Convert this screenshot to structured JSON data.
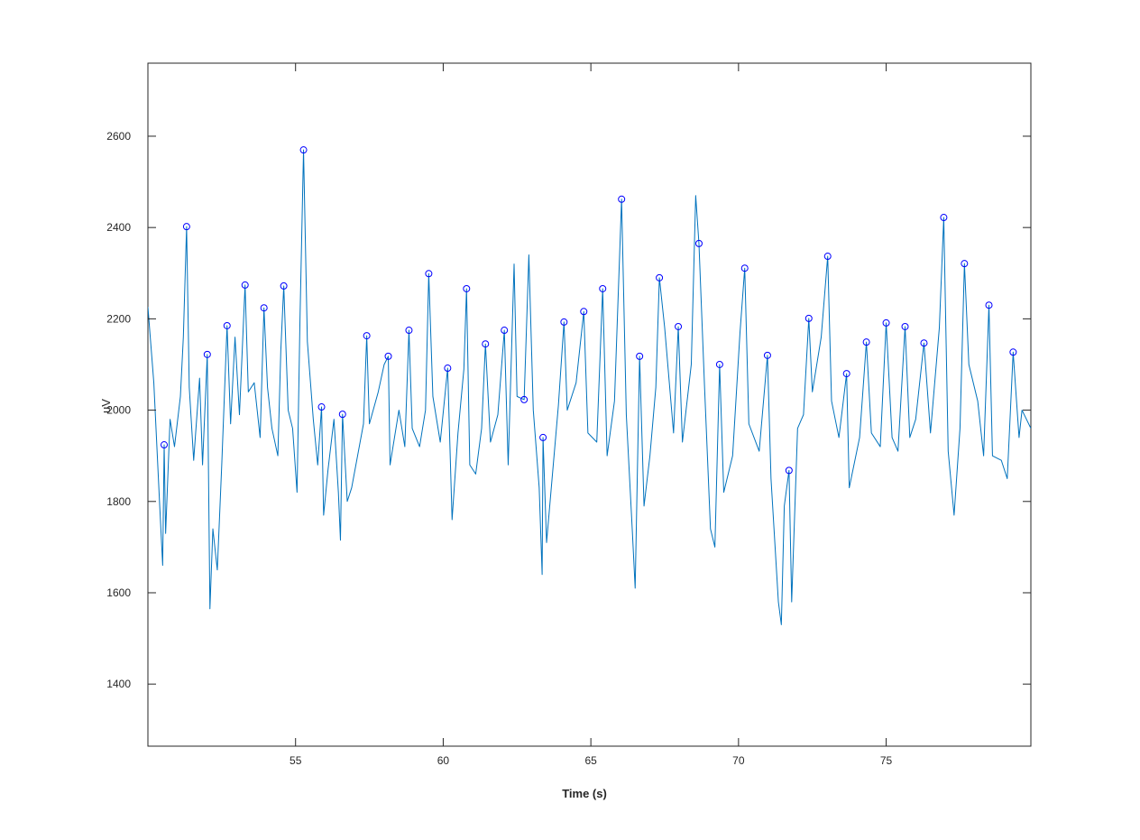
{
  "chart_data": {
    "type": "line",
    "xlabel": "Time (s)",
    "ylabel": "uV",
    "xlim": [
      50,
      79.9
    ],
    "ylim": [
      1264,
      2760
    ],
    "xticks": [
      55,
      60,
      65,
      70,
      75
    ],
    "yticks": [
      1400,
      1600,
      1800,
      2000,
      2200,
      2400,
      2600
    ],
    "grid": false,
    "series": [
      {
        "color": "#0072bd",
        "marker": "none",
        "x": [
          50.0,
          50.2,
          50.4,
          50.5,
          50.55,
          50.6,
          50.75,
          50.9,
          51.1,
          51.2,
          51.31,
          51.4,
          51.55,
          51.75,
          51.85,
          52.01,
          52.1,
          52.2,
          52.35,
          52.5,
          52.68,
          52.8,
          52.95,
          53.1,
          53.29,
          53.4,
          53.6,
          53.8,
          53.93,
          54.05,
          54.2,
          54.4,
          54.5,
          54.6,
          54.75,
          54.9,
          55.05,
          55.15,
          55.27,
          55.4,
          55.6,
          55.75,
          55.88,
          55.95,
          56.1,
          56.3,
          56.45,
          56.52,
          56.59,
          56.75,
          56.9,
          57.1,
          57.3,
          57.41,
          57.5,
          57.8,
          58.0,
          58.14,
          58.2,
          58.5,
          58.7,
          58.84,
          58.95,
          59.2,
          59.4,
          59.51,
          59.65,
          59.9,
          60.15,
          60.3,
          60.5,
          60.7,
          60.79,
          60.9,
          61.1,
          61.3,
          61.43,
          61.6,
          61.85,
          62.07,
          62.2,
          62.4,
          62.5,
          62.74,
          62.9,
          63.05,
          63.25,
          63.35,
          63.38,
          63.5,
          63.7,
          63.9,
          64.09,
          64.2,
          64.5,
          64.76,
          64.9,
          65.2,
          65.4,
          65.55,
          65.8,
          66.04,
          66.2,
          66.4,
          66.5,
          66.65,
          66.8,
          67.0,
          67.2,
          67.32,
          67.5,
          67.8,
          67.96,
          68.1,
          68.4,
          68.55,
          68.66,
          68.85,
          69.05,
          69.2,
          69.36,
          69.5,
          69.8,
          70.05,
          70.21,
          70.35,
          70.7,
          70.98,
          71.1,
          71.35,
          71.45,
          71.55,
          71.71,
          71.8,
          72.0,
          72.2,
          72.38,
          72.5,
          72.8,
          73.02,
          73.15,
          73.4,
          73.66,
          73.75,
          74.1,
          74.33,
          74.5,
          74.8,
          75.0,
          75.2,
          75.4,
          75.64,
          75.8,
          76.0,
          76.28,
          76.5,
          76.8,
          76.95,
          77.1,
          77.3,
          77.5,
          77.65,
          77.8,
          78.1,
          78.3,
          78.48,
          78.6,
          78.9,
          79.1,
          79.3,
          79.5,
          79.6,
          79.9
        ],
        "values": [
          2226,
          2060,
          1790,
          1660,
          1924,
          1730,
          1980,
          1920,
          2030,
          2160,
          2402,
          2050,
          1890,
          2070,
          1880,
          2122,
          1565,
          1740,
          1650,
          1880,
          2185,
          1970,
          2160,
          1990,
          2274,
          2040,
          2060,
          1940,
          2224,
          2050,
          1960,
          1900,
          2130,
          2272,
          2000,
          1960,
          1820,
          2200,
          2570,
          2150,
          1980,
          1880,
          2007,
          1770,
          1870,
          1980,
          1820,
          1715,
          1991,
          1800,
          1830,
          1900,
          1970,
          2163,
          1970,
          2040,
          2100,
          2118,
          1880,
          2000,
          1920,
          2175,
          1960,
          1920,
          2000,
          2299,
          2030,
          1930,
          2092,
          1760,
          1950,
          2090,
          2266,
          1880,
          1860,
          1960,
          2145,
          1930,
          1990,
          2175,
          1880,
          2320,
          2030,
          2023,
          2340,
          2000,
          1830,
          1640,
          1940,
          1710,
          1860,
          2010,
          2193,
          2000,
          2060,
          2216,
          1950,
          1930,
          2266,
          1900,
          2020,
          2462,
          1990,
          1740,
          1610,
          2118,
          1790,
          1900,
          2050,
          2290,
          2180,
          1950,
          2183,
          1930,
          2100,
          2470,
          2365,
          2050,
          1740,
          1700,
          2100,
          1820,
          1900,
          2170,
          2311,
          1970,
          1910,
          2120,
          1850,
          1580,
          1530,
          1790,
          1868,
          1580,
          1960,
          1990,
          2201,
          2040,
          2160,
          2337,
          2020,
          1940,
          2080,
          1830,
          1940,
          2149,
          1950,
          1920,
          2191,
          1940,
          1910,
          2183,
          1940,
          1980,
          2147,
          1950,
          2180,
          2422,
          1910,
          1770,
          1960,
          2321,
          2100,
          2020,
          1900,
          2230,
          1900,
          1890,
          1850,
          2127,
          1940,
          2000,
          1960
        ]
      },
      {
        "color": "#0000ff",
        "marker": "circle",
        "x": [
          50.55,
          51.31,
          52.01,
          52.68,
          53.29,
          53.93,
          54.6,
          55.27,
          55.88,
          56.59,
          57.41,
          58.14,
          58.84,
          59.51,
          60.15,
          60.79,
          61.43,
          62.07,
          62.74,
          63.38,
          64.09,
          64.76,
          65.4,
          66.04,
          66.65,
          67.32,
          67.96,
          68.66,
          69.36,
          70.21,
          70.98,
          71.71,
          72.38,
          73.02,
          73.66,
          74.33,
          75.0,
          75.64,
          76.28,
          76.95,
          77.65,
          78.48,
          79.3
        ],
        "values": [
          1924,
          2402,
          2122,
          2185,
          2274,
          2224,
          2272,
          2570,
          2007,
          1991,
          2163,
          2118,
          2175,
          2299,
          2092,
          2266,
          2145,
          2175,
          2023,
          1940,
          2193,
          2216,
          2266,
          2462,
          2118,
          2290,
          2183,
          2365,
          2100,
          2311,
          2120,
          1868,
          2201,
          2337,
          2080,
          2149,
          2191,
          2183,
          2147,
          2422,
          2321,
          2230,
          2127
        ]
      }
    ]
  }
}
